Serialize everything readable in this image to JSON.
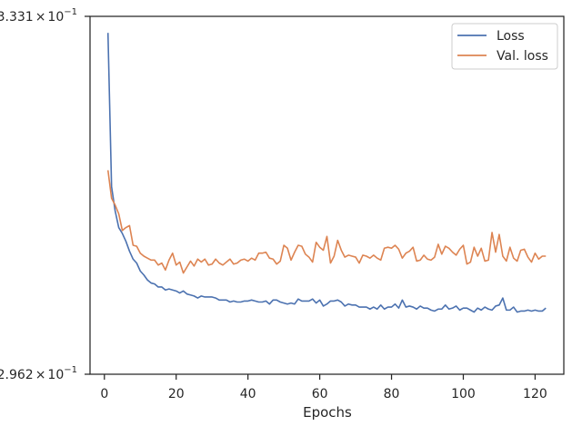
{
  "chart_data": {
    "type": "line",
    "title": "",
    "xlabel": "Epochs",
    "ylabel": "",
    "xlim": [
      -4,
      128
    ],
    "ylim": [
      0.2962,
      0.3331
    ],
    "yscale": "log",
    "grid": false,
    "legend_position": "top-right",
    "x_ticks": [
      0,
      20,
      40,
      60,
      80,
      100,
      120
    ],
    "x_tick_labels": [
      "0",
      "20",
      "40",
      "60",
      "80",
      "100",
      "120"
    ],
    "y_tick_labels": [
      {
        "value": 0.3331,
        "mantissa": "3.331",
        "base": "10",
        "exp": "−1"
      },
      {
        "value": 0.2962,
        "mantissa": "2.962",
        "base": "10",
        "exp": "−1"
      }
    ],
    "series": [
      {
        "name": "Loss",
        "color": "#4c72b0",
        "x": [
          1,
          2,
          3,
          4,
          5,
          6,
          7,
          8,
          9,
          10,
          11,
          12,
          13,
          14,
          15,
          16,
          17,
          18,
          19,
          20,
          21,
          22,
          23,
          24,
          25,
          26,
          27,
          28,
          29,
          30,
          31,
          32,
          33,
          34,
          35,
          36,
          37,
          38,
          39,
          40,
          41,
          42,
          43,
          44,
          45,
          46,
          47,
          48,
          49,
          50,
          51,
          52,
          53,
          54,
          55,
          56,
          57,
          58,
          59,
          60,
          61,
          62,
          63,
          64,
          65,
          66,
          67,
          68,
          69,
          70,
          71,
          72,
          73,
          74,
          75,
          76,
          77,
          78,
          79,
          80,
          81,
          82,
          83,
          84,
          85,
          86,
          87,
          88,
          89,
          90,
          91,
          92,
          93,
          94,
          95,
          96,
          97,
          98,
          99,
          100,
          101,
          102,
          103,
          104,
          105,
          106,
          107,
          108,
          109,
          110,
          111,
          112,
          113,
          114,
          115,
          116,
          117,
          118,
          119,
          120,
          121,
          122,
          123
        ],
        "values": [
          0.3313,
          0.315,
          0.3125,
          0.3108,
          0.3102,
          0.3094,
          0.3084,
          0.3076,
          0.3072,
          0.3064,
          0.306,
          0.3055,
          0.3052,
          0.3051,
          0.3048,
          0.3048,
          0.3045,
          0.3046,
          0.3045,
          0.3044,
          0.3042,
          0.3044,
          0.3041,
          0.304,
          0.3039,
          0.3037,
          0.3039,
          0.3038,
          0.3038,
          0.3038,
          0.3037,
          0.3035,
          0.3035,
          0.3035,
          0.3033,
          0.3034,
          0.3033,
          0.3033,
          0.3034,
          0.3034,
          0.3035,
          0.3034,
          0.3033,
          0.3033,
          0.3034,
          0.3031,
          0.3035,
          0.3035,
          0.3033,
          0.3032,
          0.3031,
          0.3032,
          0.3031,
          0.3036,
          0.3034,
          0.3034,
          0.3034,
          0.3036,
          0.3032,
          0.3035,
          0.3029,
          0.3031,
          0.3034,
          0.3034,
          0.3035,
          0.3033,
          0.3029,
          0.3031,
          0.303,
          0.303,
          0.3028,
          0.3028,
          0.3028,
          0.3026,
          0.3028,
          0.3026,
          0.303,
          0.3026,
          0.3028,
          0.3028,
          0.3031,
          0.3027,
          0.3035,
          0.3028,
          0.3029,
          0.3028,
          0.3026,
          0.3029,
          0.3027,
          0.3027,
          0.3025,
          0.3024,
          0.3026,
          0.3026,
          0.303,
          0.3026,
          0.3027,
          0.3029,
          0.3025,
          0.3027,
          0.3027,
          0.3025,
          0.3023,
          0.3027,
          0.3025,
          0.3028,
          0.3026,
          0.3025,
          0.3029,
          0.303,
          0.3037,
          0.3025,
          0.3025,
          0.3028,
          0.3023,
          0.3024,
          0.3024,
          0.3025,
          0.3024,
          0.3025,
          0.3024,
          0.3024,
          0.3027
        ]
      },
      {
        "name": "Val. loss",
        "color": "#dd8452",
        "x": [
          1,
          2,
          3,
          4,
          5,
          6,
          7,
          8,
          9,
          10,
          11,
          12,
          13,
          14,
          15,
          16,
          17,
          18,
          19,
          20,
          21,
          22,
          23,
          24,
          25,
          26,
          27,
          28,
          29,
          30,
          31,
          32,
          33,
          34,
          35,
          36,
          37,
          38,
          39,
          40,
          41,
          42,
          43,
          44,
          45,
          46,
          47,
          48,
          49,
          50,
          51,
          52,
          53,
          54,
          55,
          56,
          57,
          58,
          59,
          60,
          61,
          62,
          63,
          64,
          65,
          66,
          67,
          68,
          69,
          70,
          71,
          72,
          73,
          74,
          75,
          76,
          77,
          78,
          79,
          80,
          81,
          82,
          83,
          84,
          85,
          86,
          87,
          88,
          89,
          90,
          91,
          92,
          93,
          94,
          95,
          96,
          97,
          98,
          99,
          100,
          101,
          102,
          103,
          104,
          105,
          106,
          107,
          108,
          109,
          110,
          111,
          112,
          113,
          114,
          115,
          116,
          117,
          118,
          119,
          120,
          121,
          122,
          123
        ],
        "values": [
          0.3167,
          0.3138,
          0.3131,
          0.3122,
          0.3105,
          0.3108,
          0.311,
          0.309,
          0.3089,
          0.3082,
          0.3079,
          0.3077,
          0.3075,
          0.3075,
          0.307,
          0.3072,
          0.3065,
          0.3075,
          0.3082,
          0.307,
          0.3073,
          0.3062,
          0.3068,
          0.3074,
          0.3069,
          0.3076,
          0.3073,
          0.3076,
          0.307,
          0.3071,
          0.3076,
          0.3072,
          0.307,
          0.3073,
          0.3076,
          0.3071,
          0.3072,
          0.3075,
          0.3076,
          0.3074,
          0.3077,
          0.3075,
          0.3082,
          0.3082,
          0.3083,
          0.3077,
          0.3076,
          0.3071,
          0.3074,
          0.309,
          0.3087,
          0.3075,
          0.3083,
          0.309,
          0.3089,
          0.3081,
          0.3078,
          0.3073,
          0.3093,
          0.3088,
          0.3085,
          0.3099,
          0.3072,
          0.3079,
          0.3095,
          0.3085,
          0.3078,
          0.308,
          0.3079,
          0.3078,
          0.3072,
          0.308,
          0.3079,
          0.3077,
          0.308,
          0.3077,
          0.3075,
          0.3087,
          0.3088,
          0.3087,
          0.309,
          0.3086,
          0.3077,
          0.3082,
          0.3084,
          0.3088,
          0.3074,
          0.3075,
          0.308,
          0.3076,
          0.3075,
          0.3078,
          0.3091,
          0.3081,
          0.3089,
          0.3087,
          0.3083,
          0.308,
          0.3086,
          0.309,
          0.3071,
          0.3073,
          0.3088,
          0.3079,
          0.3087,
          0.3074,
          0.3075,
          0.3103,
          0.3083,
          0.3101,
          0.3079,
          0.3074,
          0.3088,
          0.3077,
          0.3074,
          0.3085,
          0.3086,
          0.3078,
          0.3073,
          0.3082,
          0.3076,
          0.3079,
          0.3079
        ]
      }
    ]
  }
}
